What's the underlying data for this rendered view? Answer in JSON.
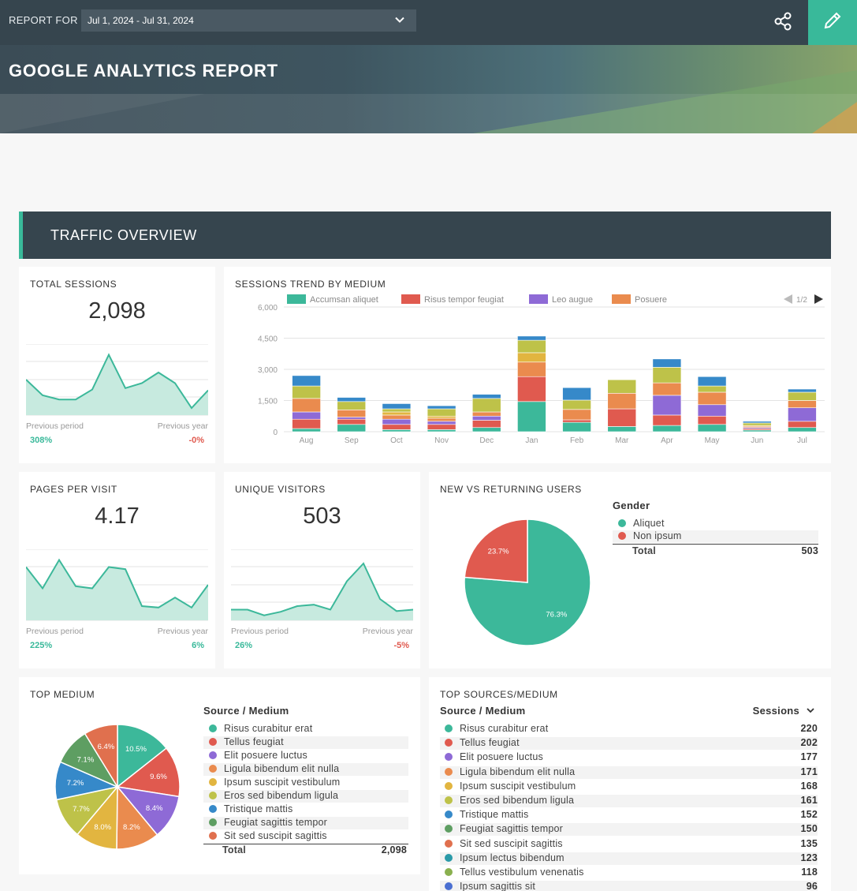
{
  "header": {
    "report_for_label": "REPORT FOR",
    "date_range": "Jul 1, 2024 - Jul 31, 2024",
    "title": "GOOGLE ANALYTICS REPORT"
  },
  "section": {
    "title": "TRAFFIC OVERVIEW"
  },
  "colors": {
    "accent": "#39b99a",
    "navy": "#36454e",
    "teal": "#3cb89a",
    "red": "#e05a4f",
    "purple": "#8e6ad6",
    "orange": "#ea8b4e",
    "olive": "#bec249",
    "blue": "#3689c9",
    "gold": "#e2b540",
    "green": "#5e9e62"
  },
  "total_sessions": {
    "title": "TOTAL SESSIONS",
    "value": "2,098",
    "previous_period_label": "Previous period",
    "previous_year_label": "Previous year",
    "previous_period_pct": "308%",
    "previous_year_pct": "-0%",
    "trend": [
      0.5,
      0.28,
      0.22,
      0.22,
      0.36,
      0.85,
      0.38,
      0.45,
      0.6,
      0.45,
      0.1,
      0.35
    ]
  },
  "pages_per_visit": {
    "title": "PAGES PER VISIT",
    "value": "4.17",
    "previous_period_label": "Previous period",
    "previous_year_label": "Previous year",
    "previous_period_pct": "225%",
    "previous_year_pct": "6%",
    "trend": [
      0.75,
      0.45,
      0.85,
      0.48,
      0.45,
      0.75,
      0.72,
      0.2,
      0.18,
      0.32,
      0.18,
      0.5
    ]
  },
  "unique_visitors": {
    "title": "UNIQUE VISITORS",
    "value": "503",
    "previous_period_label": "Previous period",
    "previous_year_label": "Previous year",
    "previous_period_pct": "26%",
    "previous_year_pct": "-5%",
    "trend": [
      0.15,
      0.15,
      0.07,
      0.12,
      0.2,
      0.22,
      0.15,
      0.55,
      0.8,
      0.3,
      0.13,
      0.15
    ]
  },
  "sessions_trend": {
    "title": "SESSIONS TREND BY MEDIUM",
    "pager": "1/2",
    "legend": [
      {
        "label": "Accumsan aliquet",
        "color": "#3cb89a"
      },
      {
        "label": "Risus tempor feugiat",
        "color": "#e05a4f"
      },
      {
        "label": "Leo augue",
        "color": "#8e6ad6"
      },
      {
        "label": "Posuere",
        "color": "#ea8b4e"
      }
    ],
    "y_ticks": [
      "6,000",
      "4,500",
      "3,000",
      "1,500",
      "0"
    ]
  },
  "chart_data": {
    "type": "bar",
    "stacked": true,
    "categories": [
      "Aug",
      "Sep",
      "Oct",
      "Nov",
      "Dec",
      "Jan",
      "Feb",
      "Mar",
      "Apr",
      "May",
      "Jun",
      "Jul"
    ],
    "ylim": [
      0,
      6000
    ],
    "series": [
      {
        "name": "Accumsan aliquet",
        "color": "#3cb89a",
        "values": [
          150,
          350,
          100,
          100,
          200,
          1450,
          450,
          250,
          300,
          350,
          80,
          200
        ]
      },
      {
        "name": "Risus tempor feugiat",
        "color": "#e05a4f",
        "values": [
          450,
          250,
          250,
          250,
          350,
          1200,
          120,
          850,
          500,
          400,
          70,
          300
        ]
      },
      {
        "name": "Leo augue",
        "color": "#8e6ad6",
        "values": [
          350,
          100,
          250,
          150,
          200,
          0,
          0,
          0,
          950,
          550,
          50,
          650
        ]
      },
      {
        "name": "Posuere",
        "color": "#ea8b4e",
        "values": [
          650,
          350,
          200,
          150,
          200,
          700,
          500,
          750,
          600,
          600,
          60,
          350
        ]
      },
      {
        "color": "#e2b540",
        "values": [
          0,
          0,
          150,
          100,
          0,
          450,
          0,
          0,
          0,
          0,
          40,
          0
        ]
      },
      {
        "color": "#bec249",
        "values": [
          600,
          400,
          150,
          350,
          650,
          600,
          450,
          650,
          750,
          300,
          120,
          400
        ]
      },
      {
        "color": "#3689c9",
        "values": [
          500,
          200,
          250,
          150,
          200,
          200,
          600,
          0,
          400,
          450,
          80,
          150
        ]
      }
    ]
  },
  "new_vs_returning": {
    "title": "NEW VS RETURNING USERS",
    "legend_title": "Gender",
    "items": [
      {
        "label": "Aliquet",
        "color": "#3cb89a",
        "pct": 76.3,
        "pct_label": "76.3%"
      },
      {
        "label": "Non ipsum",
        "color": "#e05a4f",
        "pct": 23.7,
        "pct_label": "23.7%"
      }
    ],
    "total_label": "Total",
    "total_value": "503"
  },
  "top_medium": {
    "title": "TOP MEDIUM",
    "col_header": "Source / Medium",
    "items": [
      {
        "label": "Risus curabitur erat",
        "color": "#3cb89a",
        "pct": 10.5,
        "pct_label": "10.5%"
      },
      {
        "label": "Tellus feugiat",
        "color": "#e05a4f",
        "pct": 9.6,
        "pct_label": "9.6%"
      },
      {
        "label": "Elit posuere luctus",
        "color": "#8e6ad6",
        "pct": 8.4,
        "pct_label": "8.4%"
      },
      {
        "label": "Ligula bibendum elit nulla",
        "color": "#ea8b4e",
        "pct": 8.2,
        "pct_label": "8.2%"
      },
      {
        "label": "Ipsum suscipit vestibulum",
        "color": "#e2b540",
        "pct": 8.0,
        "pct_label": "8.0%"
      },
      {
        "label": "Eros sed bibendum ligula",
        "color": "#bec249",
        "pct": 7.7,
        "pct_label": "7.7%"
      },
      {
        "label": "Tristique mattis",
        "color": "#3689c9",
        "pct": 7.2,
        "pct_label": "7.2%"
      },
      {
        "label": "Feugiat sagittis tempor",
        "color": "#5e9e62",
        "pct": 7.1,
        "pct_label": "7.1%"
      },
      {
        "label": "Sit sed suscipit sagittis",
        "color": "#e0704e",
        "pct": 6.4,
        "pct_label": "6.4%"
      }
    ],
    "total_label": "Total",
    "total_value": "2,098"
  },
  "top_sources": {
    "title": "TOP SOURCES/MEDIUM",
    "col_header": "Source / Medium",
    "sessions_header": "Sessions",
    "rows": [
      {
        "label": "Risus curabitur erat",
        "color": "#3cb89a",
        "value": "220"
      },
      {
        "label": "Tellus feugiat",
        "color": "#e05a4f",
        "value": "202"
      },
      {
        "label": "Elit posuere luctus",
        "color": "#8e6ad6",
        "value": "177"
      },
      {
        "label": "Ligula bibendum elit nulla",
        "color": "#ea8b4e",
        "value": "171"
      },
      {
        "label": "Ipsum suscipit vestibulum",
        "color": "#e2b540",
        "value": "168"
      },
      {
        "label": "Eros sed bibendum ligula",
        "color": "#bec249",
        "value": "161"
      },
      {
        "label": "Tristique mattis",
        "color": "#3689c9",
        "value": "152"
      },
      {
        "label": "Feugiat sagittis tempor",
        "color": "#5e9e62",
        "value": "150"
      },
      {
        "label": "Sit sed suscipit sagittis",
        "color": "#e0704e",
        "value": "135"
      },
      {
        "label": "Ipsum lectus bibendum",
        "color": "#2a9aa8",
        "value": "123"
      },
      {
        "label": "Tellus vestibulum venenatis",
        "color": "#8ab04f",
        "value": "118"
      },
      {
        "label": "Ipsum sagittis sit",
        "color": "#4a6fd1",
        "value": "96"
      }
    ]
  }
}
